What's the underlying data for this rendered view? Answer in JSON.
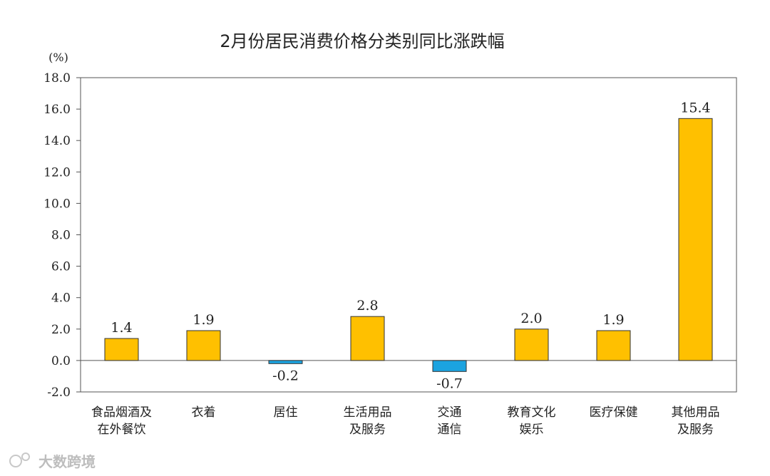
{
  "watermark": "大数跨境",
  "chart_data": {
    "type": "bar",
    "title": "2月份居民消费价格分类别同比涨跌幅",
    "unit_label": "(%)",
    "xlabel": "",
    "ylabel": "",
    "ylim": [
      -2.0,
      18.0
    ],
    "yticks": [
      "18.0",
      "16.0",
      "14.0",
      "12.0",
      "10.0",
      "8.0",
      "6.0",
      "4.0",
      "2.0",
      "0.0",
      "-2.0"
    ],
    "ytick_values": [
      18,
      16,
      14,
      12,
      10,
      8,
      6,
      4,
      2,
      0,
      -2
    ],
    "grid": false,
    "categories": [
      [
        "食品烟酒及",
        "在外餐饮"
      ],
      [
        "衣着"
      ],
      [
        "居住"
      ],
      [
        "生活用品",
        "及服务"
      ],
      [
        "交通",
        "通信"
      ],
      [
        "教育文化",
        "娱乐"
      ],
      [
        "医疗保健"
      ],
      [
        "其他用品",
        "及服务"
      ]
    ],
    "values": [
      1.4,
      1.9,
      -0.2,
      2.8,
      -0.7,
      2.0,
      1.9,
      15.4
    ],
    "value_labels": [
      "1.4",
      "1.9",
      "-0.2",
      "2.8",
      "-0.7",
      "2.0",
      "1.9",
      "15.4"
    ],
    "colors": {
      "positive": "#FFC000",
      "negative": "#1BA3E0",
      "outline": "#333333"
    }
  }
}
